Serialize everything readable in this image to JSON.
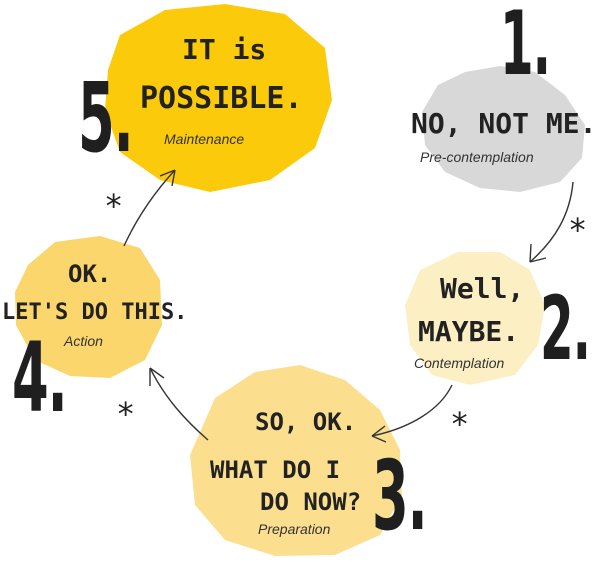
{
  "colors": {
    "stage1": "#d8d8d8",
    "stage2": "#fcefc4",
    "stage3": "#fbdf8f",
    "stage4": "#fad66d",
    "stage5": "#fbca0a",
    "ink": "#222222"
  },
  "stages": [
    {
      "number": "1.",
      "quote": "NO, NOT ME.",
      "label": "Pre-contemplation"
    },
    {
      "number": "2.",
      "quote_line1": "Well,",
      "quote_line2": "MAYBE.",
      "label": "Contemplation"
    },
    {
      "number": "3.",
      "quote_line1": "SO, OK.",
      "quote_line2": "WHAT DO I",
      "quote_line3": "DO NOW?",
      "label": "Preparation"
    },
    {
      "number": "4.",
      "quote_line1": "OK.",
      "quote_line2": "LET'S DO THIS.",
      "label": "Action"
    },
    {
      "number": "5.",
      "quote_line1": "IT is",
      "quote_line2": "POSSIBLE.",
      "label": "Maintenance"
    }
  ],
  "connector_symbol": "*"
}
